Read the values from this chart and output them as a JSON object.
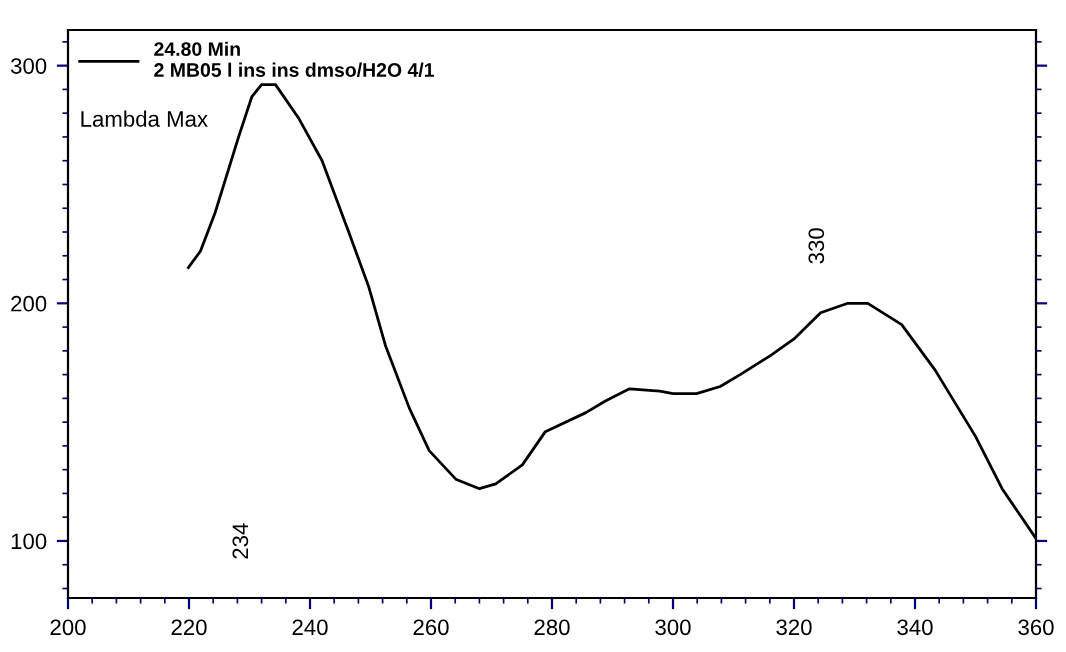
{
  "chart_data": {
    "type": "line",
    "xlim": [
      200,
      360
    ],
    "ylim": [
      76,
      315
    ],
    "xticks": [
      200,
      220,
      240,
      260,
      280,
      300,
      320,
      340,
      360
    ],
    "yticks": [
      100,
      200,
      300
    ],
    "grid": false,
    "legend": "top left",
    "marker": "none",
    "line_style": "solid",
    "annotations": [
      "Lambda Max",
      "234",
      "330"
    ],
    "series": [
      {
        "name": "24.80 Min\n2 MB05 l ins ins dmso/H2O 4/1",
        "color": "#000000",
        "x": [
          219.9,
          221.9,
          224.3,
          228.2,
          230.4,
          232,
          234.3,
          238.1,
          242,
          246.4,
          249.7,
          252.5,
          256.4,
          259.7,
          264.1,
          268,
          270.7,
          275.1,
          278.9,
          285.6,
          288.9,
          292.8,
          297.8,
          300,
          303.9,
          307.8,
          311.1,
          316.1,
          320,
          324.4,
          328.9,
          332.2,
          337.8,
          343.3,
          350,
          354.4,
          360
        ],
        "values": [
          215,
          222,
          238,
          270,
          287,
          292,
          292,
          278,
          260,
          230,
          207,
          182,
          156,
          138,
          126,
          122,
          124,
          132,
          146,
          154,
          159,
          164,
          163,
          162,
          162,
          165,
          170,
          178,
          185,
          196,
          200,
          200,
          191,
          172,
          144,
          122,
          101
        ]
      }
    ]
  }
}
